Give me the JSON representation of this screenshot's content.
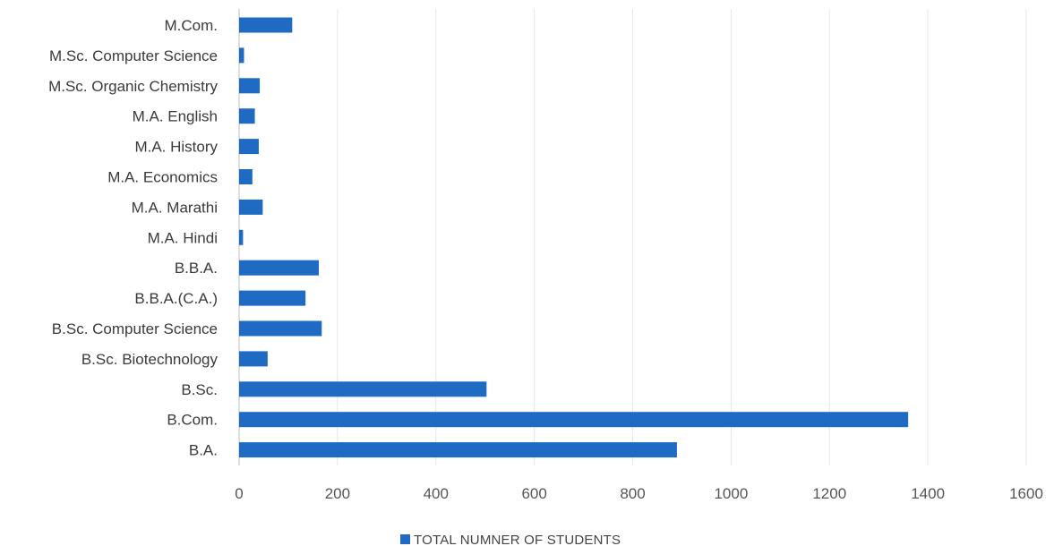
{
  "chart_data": {
    "type": "bar",
    "orientation": "horizontal",
    "categories": [
      "M.Com.",
      "M.Sc. Computer Science",
      "M.Sc. Organic Chemistry",
      "M.A. English",
      "M.A. History",
      "M.A. Economics",
      "M.A. Marathi",
      "M.A. Hindi",
      "B.B.A.",
      "B.B.A.(C.A.)",
      "B.Sc. Computer Science",
      "B.Sc. Biotechnology",
      "B.Sc.",
      "B.Com.",
      "B.A."
    ],
    "series": [
      {
        "name": "TOTAL NUMNER OF STUDENTS",
        "values": [
          108,
          10,
          42,
          32,
          40,
          27,
          48,
          8,
          162,
          135,
          168,
          58,
          503,
          1360,
          890
        ],
        "color": "#1f6bc4"
      }
    ],
    "xlim": [
      0,
      1600
    ],
    "x_ticks": [
      "0",
      "200",
      "400",
      "600",
      "800",
      "1000",
      "1200",
      "1400",
      "1600"
    ],
    "grid": true,
    "legend_position": "bottom"
  }
}
